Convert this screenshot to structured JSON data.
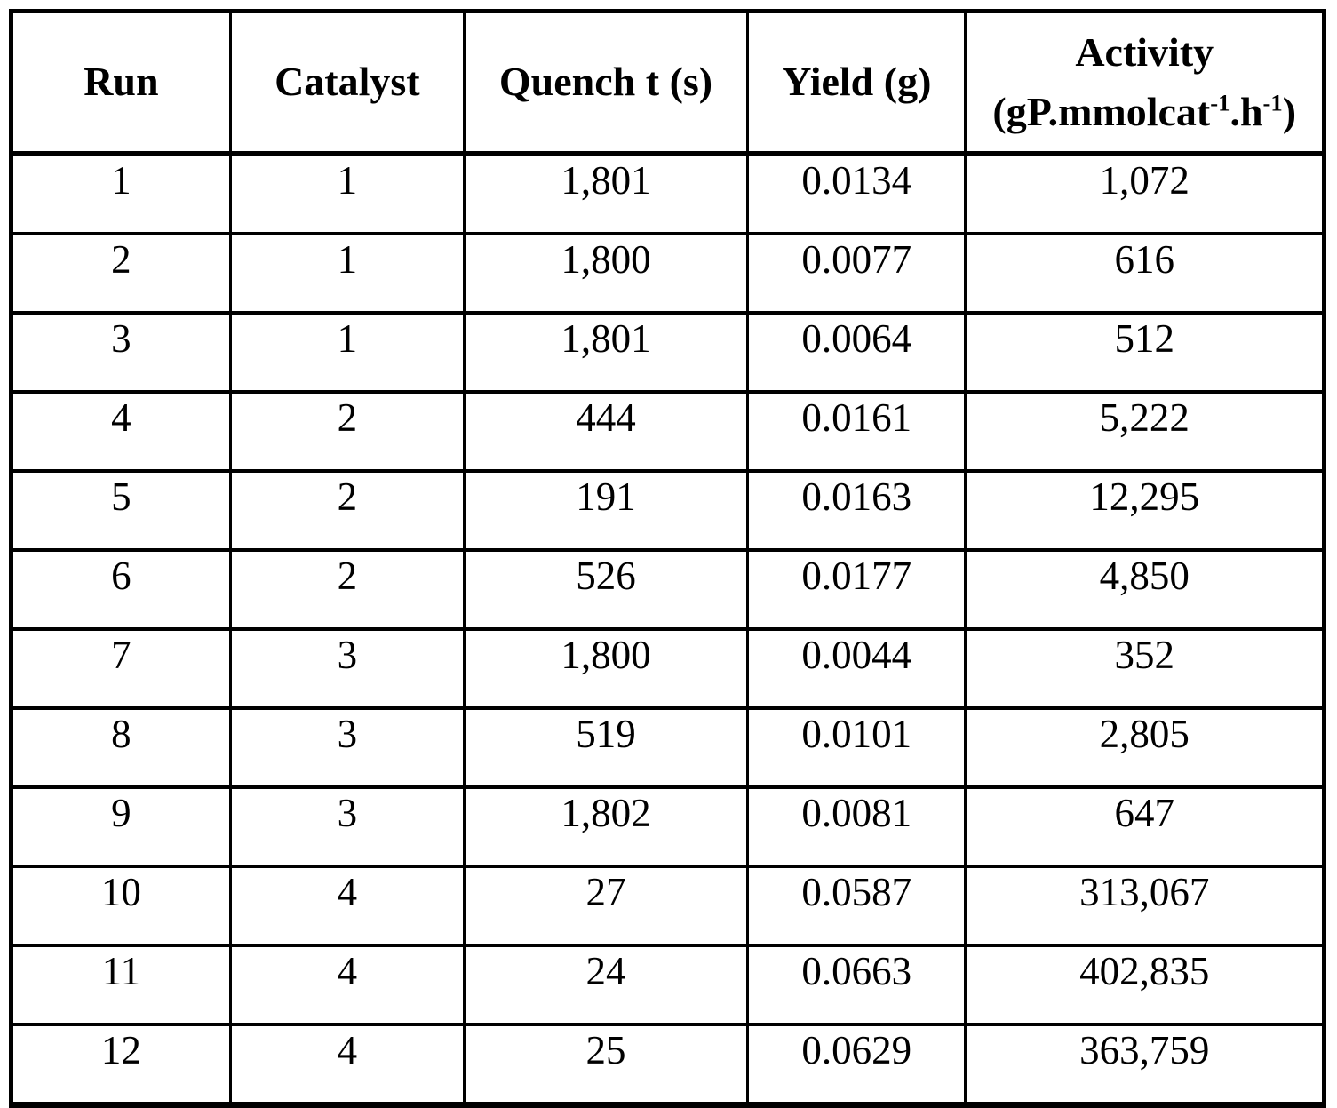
{
  "table": {
    "columns": [
      {
        "label": "Run"
      },
      {
        "label": "Catalyst"
      },
      {
        "label": "Quench t (s)"
      },
      {
        "label": "Yield (g)"
      },
      {
        "label": "Activity",
        "unit_pre": "(gP.mmolcat",
        "unit_sup1": "-1",
        "unit_mid": ".h",
        "unit_sup2": "-1",
        "unit_post": ")"
      }
    ],
    "rows": [
      [
        "1",
        "1",
        "1,801",
        "0.0134",
        "1,072"
      ],
      [
        "2",
        "1",
        "1,800",
        "0.0077",
        "616"
      ],
      [
        "3",
        "1",
        "1,801",
        "0.0064",
        "512"
      ],
      [
        "4",
        "2",
        "444",
        "0.0161",
        "5,222"
      ],
      [
        "5",
        "2",
        "191",
        "0.0163",
        "12,295"
      ],
      [
        "6",
        "2",
        "526",
        "0.0177",
        "4,850"
      ],
      [
        "7",
        "3",
        "1,800",
        "0.0044",
        "352"
      ],
      [
        "8",
        "3",
        "519",
        "0.0101",
        "2,805"
      ],
      [
        "9",
        "3",
        "1,802",
        "0.0081",
        "647"
      ],
      [
        "10",
        "4",
        "27",
        "0.0587",
        "313,067"
      ],
      [
        "11",
        "4",
        "24",
        "0.0663",
        "402,835"
      ],
      [
        "12",
        "4",
        "25",
        "0.0629",
        "363,759"
      ]
    ]
  }
}
